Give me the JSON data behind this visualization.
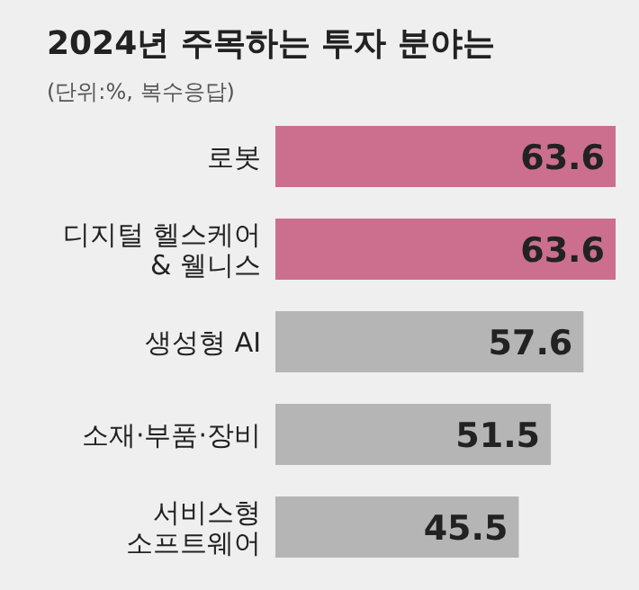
{
  "chart_data": {
    "type": "bar",
    "orientation": "horizontal",
    "title": "2024년 주목하는 투자 분야는",
    "subtitle": "(단위:%, 복수응답)",
    "categories": [
      "로봇",
      "디지털 헬스케어\n& 웰니스",
      "생성형 AI",
      "소재·부품·장비",
      "서비스형\n소프트웨어"
    ],
    "values": [
      63.6,
      63.6,
      57.6,
      51.5,
      45.5
    ],
    "colors": [
      "#cc6f8e",
      "#cc6f8e",
      "#b5b5b5",
      "#b5b5b5",
      "#b5b5b5"
    ],
    "data_labels": true
  }
}
